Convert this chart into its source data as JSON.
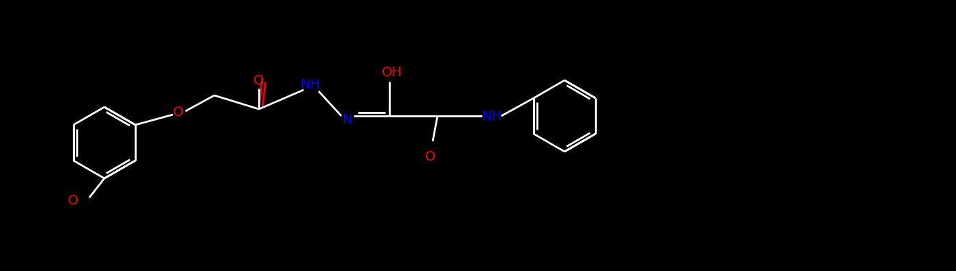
{
  "bg_color": "#000000",
  "bond_color": "#ffffff",
  "o_color": "#ff0000",
  "n_color": "#0000ff",
  "lw": 2.0,
  "fig_width": 13.92,
  "fig_height": 3.95,
  "dpi": 100,
  "xlim": [
    0,
    1392
  ],
  "ylim": [
    0,
    395
  ]
}
